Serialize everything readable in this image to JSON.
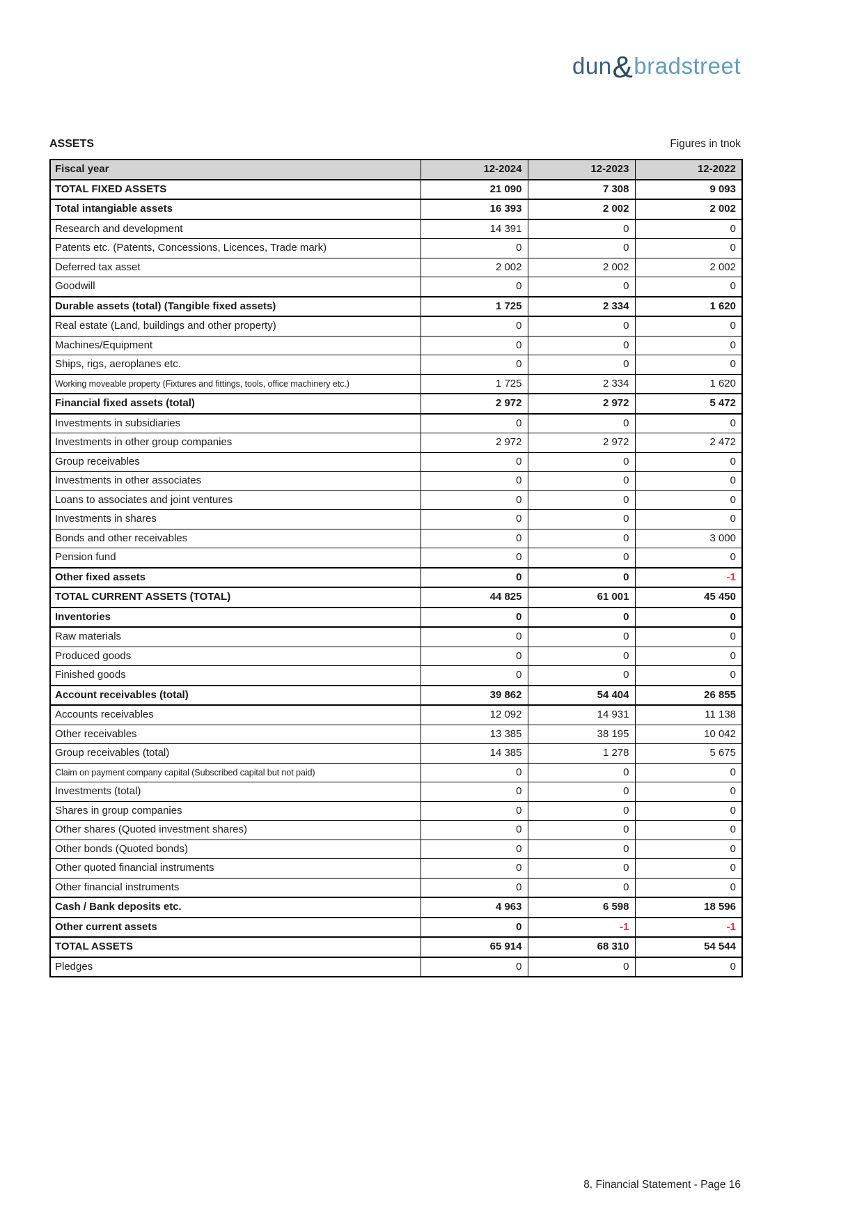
{
  "logo": {
    "dun": "dun",
    "amp": "&",
    "bradstreet": "bradstreet"
  },
  "header": {
    "section_title": "ASSETS",
    "units_note": "Figures in tnok"
  },
  "table": {
    "columns": [
      "Fiscal year",
      "12-2024",
      "12-2023",
      "12-2022"
    ],
    "rows": [
      {
        "label": "TOTAL FIXED ASSETS",
        "values": [
          "21 090",
          "7 308",
          "9 093"
        ],
        "bold": true
      },
      {
        "label": "Total intangiable assets",
        "values": [
          "16 393",
          "2 002",
          "2 002"
        ],
        "bold": true
      },
      {
        "label": "Research and development",
        "values": [
          "14 391",
          "0",
          "0"
        ]
      },
      {
        "label": "Patents etc. (Patents, Concessions, Licences, Trade mark)",
        "values": [
          "0",
          "0",
          "0"
        ]
      },
      {
        "label": "Deferred tax asset",
        "values": [
          "2 002",
          "2 002",
          "2 002"
        ]
      },
      {
        "label": "Goodwill",
        "values": [
          "0",
          "0",
          "0"
        ]
      },
      {
        "label": "Durable assets (total) (Tangible fixed assets)",
        "values": [
          "1 725",
          "2 334",
          "1 620"
        ],
        "bold": true
      },
      {
        "label": "Real estate (Land, buildings and other property)",
        "values": [
          "0",
          "0",
          "0"
        ]
      },
      {
        "label": "Machines/Equipment",
        "values": [
          "0",
          "0",
          "0"
        ]
      },
      {
        "label": "Ships, rigs, aeroplanes etc.",
        "values": [
          "0",
          "0",
          "0"
        ]
      },
      {
        "label": "Working moveable property (Fixtures and fittings, tools, office machinery etc.)",
        "values": [
          "1 725",
          "2 334",
          "1 620"
        ],
        "condensed": true
      },
      {
        "label": "Financial fixed assets (total)",
        "values": [
          "2 972",
          "2 972",
          "5 472"
        ],
        "bold": true
      },
      {
        "label": "Investments in subsidiaries",
        "values": [
          "0",
          "0",
          "0"
        ]
      },
      {
        "label": "Investments in other group companies",
        "values": [
          "2 972",
          "2 972",
          "2 472"
        ]
      },
      {
        "label": "Group receivables",
        "values": [
          "0",
          "0",
          "0"
        ]
      },
      {
        "label": "Investments in other associates",
        "values": [
          "0",
          "0",
          "0"
        ]
      },
      {
        "label": "Loans to associates and joint ventures",
        "values": [
          "0",
          "0",
          "0"
        ]
      },
      {
        "label": "Investments in shares",
        "values": [
          "0",
          "0",
          "0"
        ]
      },
      {
        "label": "Bonds and other receivables",
        "values": [
          "0",
          "0",
          "3 000"
        ]
      },
      {
        "label": "Pension fund",
        "values": [
          "0",
          "0",
          "0"
        ]
      },
      {
        "label": "Other fixed assets",
        "values": [
          "0",
          "0",
          "-1"
        ],
        "bold": true,
        "red": [
          false,
          false,
          true
        ]
      },
      {
        "label": "TOTAL CURRENT ASSETS (TOTAL)",
        "values": [
          "44 825",
          "61 001",
          "45 450"
        ],
        "bold": true
      },
      {
        "label": "Inventories",
        "values": [
          "0",
          "0",
          "0"
        ],
        "bold": true
      },
      {
        "label": "Raw materials",
        "values": [
          "0",
          "0",
          "0"
        ]
      },
      {
        "label": "Produced goods",
        "values": [
          "0",
          "0",
          "0"
        ]
      },
      {
        "label": "Finished goods",
        "values": [
          "0",
          "0",
          "0"
        ]
      },
      {
        "label": "Account receivables (total)",
        "values": [
          "39 862",
          "54 404",
          "26 855"
        ],
        "bold": true
      },
      {
        "label": "Accounts receivables",
        "values": [
          "12 092",
          "14 931",
          "11 138"
        ]
      },
      {
        "label": "Other receivables",
        "values": [
          "13 385",
          "38 195",
          "10 042"
        ]
      },
      {
        "label": "Group receivables (total)",
        "values": [
          "14 385",
          "1 278",
          "5 675"
        ]
      },
      {
        "label": "Claim on payment company capital (Subscribed capital but not paid)",
        "values": [
          "0",
          "0",
          "0"
        ],
        "condensed": true
      },
      {
        "label": "Investments (total)",
        "values": [
          "0",
          "0",
          "0"
        ]
      },
      {
        "label": "Shares in group companies",
        "values": [
          "0",
          "0",
          "0"
        ]
      },
      {
        "label": "Other shares (Quoted investment shares)",
        "values": [
          "0",
          "0",
          "0"
        ]
      },
      {
        "label": "Other bonds (Quoted bonds)",
        "values": [
          "0",
          "0",
          "0"
        ]
      },
      {
        "label": "Other quoted financial instruments",
        "values": [
          "0",
          "0",
          "0"
        ]
      },
      {
        "label": "Other financial instruments",
        "values": [
          "0",
          "0",
          "0"
        ]
      },
      {
        "label": "Cash / Bank deposits etc.",
        "values": [
          "4 963",
          "6 598",
          "18 596"
        ],
        "bold": true
      },
      {
        "label": "Other current assets",
        "values": [
          "0",
          "-1",
          "-1"
        ],
        "bold": true,
        "red": [
          false,
          true,
          true
        ]
      },
      {
        "label": "TOTAL ASSETS",
        "values": [
          "65 914",
          "68 310",
          "54 544"
        ],
        "bold": true
      },
      {
        "label": "Pledges",
        "values": [
          "0",
          "0",
          "0"
        ]
      }
    ]
  },
  "footer": {
    "text": "8. Financial Statement - Page 16"
  },
  "colors": {
    "logo_dark": "#2b4a66",
    "logo_mid": "#3a607f",
    "logo_light": "#5e9dc0",
    "negative": "#e5333d",
    "header_bg": "#d4d4d4"
  }
}
